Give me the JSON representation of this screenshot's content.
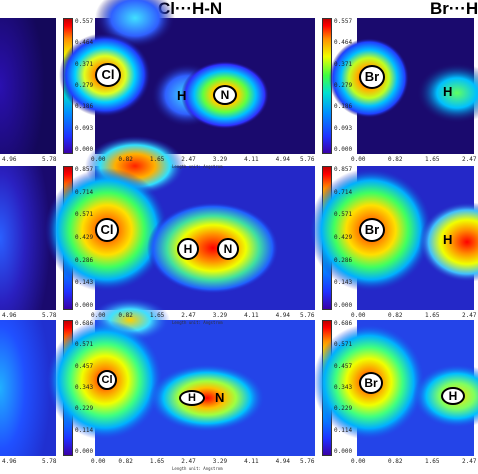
{
  "titles": {
    "center": "Cl···H-N",
    "right": "Br···H"
  },
  "colorbars": [
    [
      "0.557",
      "0.464",
      "0.371",
      "0.279",
      "0.186",
      "0.093",
      "0.000"
    ],
    [
      "0.857",
      "0.714",
      "0.571",
      "0.429",
      "0.286",
      "0.143",
      "0.000"
    ],
    [
      "0.686",
      "0.571",
      "0.457",
      "0.343",
      "0.229",
      "0.114",
      "0.000"
    ]
  ],
  "x_ticks": [
    "0.00",
    "0.82",
    "1.65",
    "2.47",
    "3.29",
    "4.11",
    "4.94",
    "5.76"
  ],
  "left_x_ticks": [
    "4.96",
    "5.78"
  ],
  "right_x_ticks": [
    "0.00",
    "0.82",
    "1.65",
    "2.47"
  ],
  "unit_label": "Length unit: Angstrom",
  "atoms": {
    "cl": "Cl",
    "br": "Br",
    "h": "H",
    "n": "N"
  },
  "colors": {
    "background": "#1a0a6e",
    "low": "#3a00a8",
    "high": "#ff0000"
  }
}
